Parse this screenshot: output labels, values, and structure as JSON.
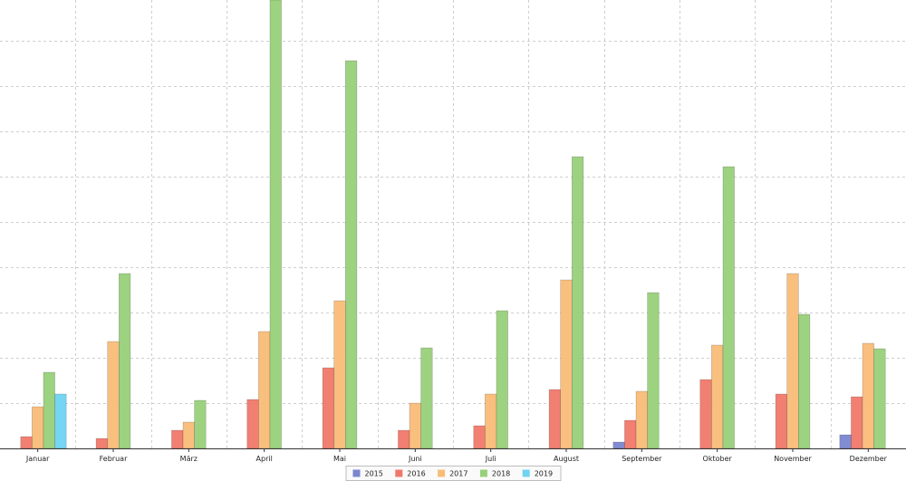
{
  "chart_data": {
    "type": "bar",
    "title": "",
    "xlabel": "",
    "ylabel": "",
    "grid": true,
    "legend_position": "bottom-center",
    "categories": [
      "Januar",
      "Februar",
      "März",
      "April",
      "Mai",
      "Juni",
      "Juli",
      "August",
      "September",
      "Oktober",
      "November",
      "Dezember"
    ],
    "ylim": [
      0,
      495
    ],
    "series": [
      {
        "name": "2015",
        "color": "#7b86cf",
        "values": [
          0,
          0,
          0,
          0,
          0,
          0,
          0,
          0,
          7,
          0,
          0,
          15
        ]
      },
      {
        "name": "2016",
        "color": "#f0786a",
        "values": [
          13,
          11,
          20,
          54,
          89,
          20,
          25,
          65,
          31,
          76,
          60,
          57
        ]
      },
      {
        "name": "2017",
        "color": "#f8bc78",
        "values": [
          46,
          118,
          29,
          129,
          163,
          50,
          60,
          186,
          63,
          114,
          193,
          116
        ]
      },
      {
        "name": "2018",
        "color": "#98d07a",
        "values": [
          84,
          193,
          53,
          495,
          428,
          111,
          152,
          322,
          172,
          311,
          148,
          110
        ]
      },
      {
        "name": "2019",
        "color": "#6fd3f2",
        "values": [
          60,
          0,
          0,
          0,
          0,
          0,
          0,
          0,
          0,
          0,
          0,
          0
        ]
      }
    ]
  }
}
